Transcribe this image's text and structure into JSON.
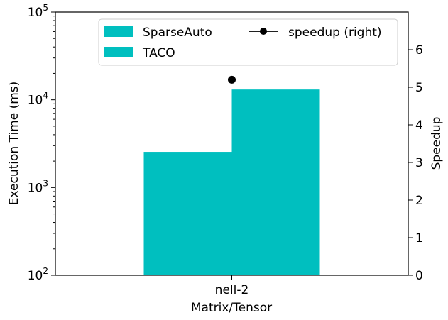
{
  "chart_data": {
    "type": "bar",
    "title": "",
    "categories": [
      "nell-2"
    ],
    "xlabel": "Matrix/Tensor",
    "ylabel": "Execution Time (ms)",
    "y_scale": "log",
    "ylim": [
      100,
      100000
    ],
    "y_ticks": [
      {
        "base": "10",
        "exp": "2"
      },
      {
        "base": "10",
        "exp": "3"
      },
      {
        "base": "10",
        "exp": "4"
      },
      {
        "base": "10",
        "exp": "5"
      }
    ],
    "ylabel_right": "Speedup",
    "ylim_right": [
      0,
      7
    ],
    "y_ticks_right": [
      "0",
      "1",
      "2",
      "3",
      "4",
      "5",
      "6"
    ],
    "series": [
      {
        "name": "SparseAuto",
        "values": [
          2550
        ],
        "color": "#00bfbf",
        "kind": "bar",
        "axis": "left"
      },
      {
        "name": "TACO",
        "values": [
          13100
        ],
        "color": "#00bfbf",
        "kind": "bar",
        "axis": "left"
      },
      {
        "name": "speedup (right)",
        "values": [
          5.2
        ],
        "color": "#000000",
        "kind": "line-marker",
        "axis": "right"
      }
    ],
    "grid": false,
    "legend": "top"
  }
}
